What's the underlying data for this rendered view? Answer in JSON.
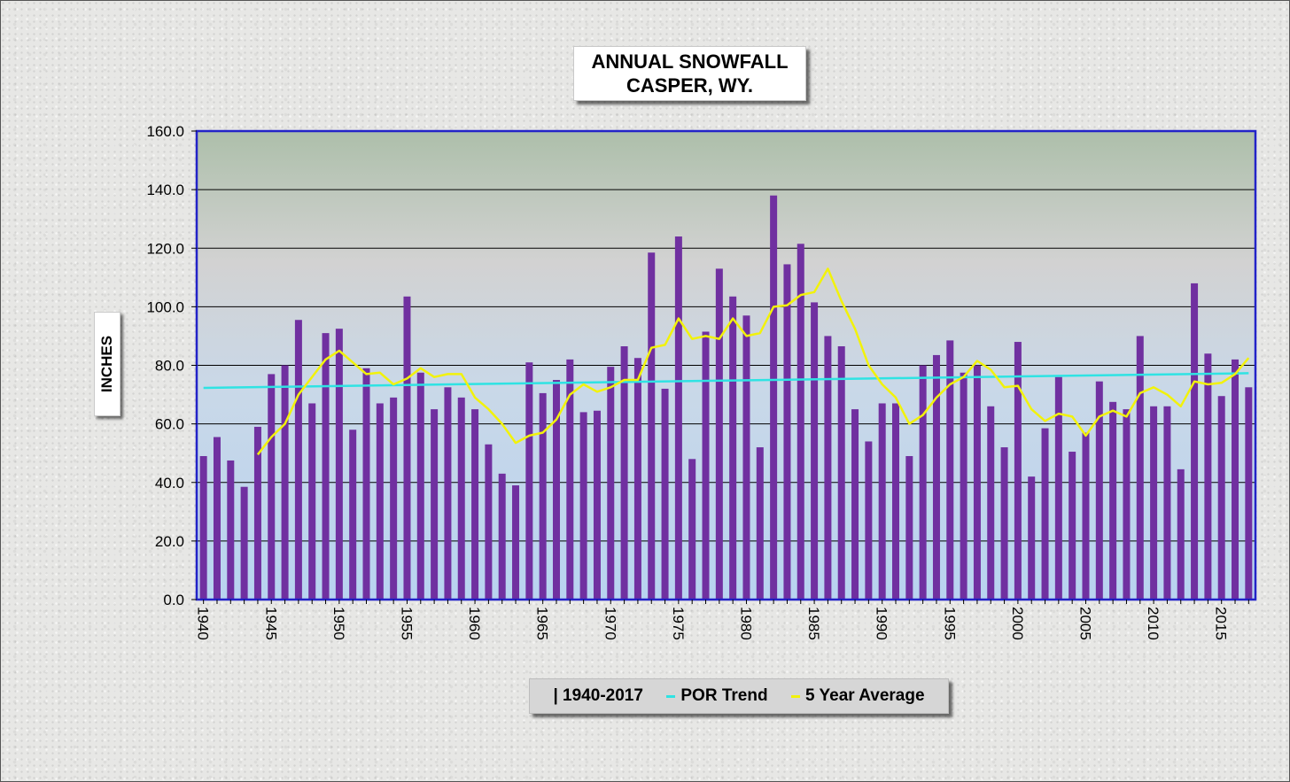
{
  "chart_data": {
    "type": "bar",
    "title_lines": [
      "ANNUAL SNOWFALL",
      "CASPER, WY."
    ],
    "ylabel": "INCHES",
    "ylim": [
      0,
      160
    ],
    "yticks": [
      "0.0",
      "20.0",
      "40.0",
      "60.0",
      "80.0",
      "100.0",
      "120.0",
      "140.0",
      "160.0"
    ],
    "x_tick_labels": [
      "1940",
      "1945",
      "1950",
      "1955",
      "1960",
      "1965",
      "1970",
      "1975",
      "1980",
      "1985",
      "1990",
      "1995",
      "2000",
      "2005",
      "2010",
      "2015"
    ],
    "grid": true,
    "legend_position": "bottom",
    "years": [
      1940,
      1941,
      1942,
      1943,
      1944,
      1945,
      1946,
      1947,
      1948,
      1949,
      1950,
      1951,
      1952,
      1953,
      1954,
      1955,
      1956,
      1957,
      1958,
      1959,
      1960,
      1961,
      1962,
      1963,
      1964,
      1965,
      1966,
      1967,
      1968,
      1969,
      1970,
      1971,
      1972,
      1973,
      1974,
      1975,
      1976,
      1977,
      1978,
      1979,
      1980,
      1981,
      1982,
      1983,
      1984,
      1985,
      1986,
      1987,
      1988,
      1989,
      1990,
      1991,
      1992,
      1993,
      1994,
      1995,
      1996,
      1997,
      1998,
      1999,
      2000,
      2001,
      2002,
      2003,
      2004,
      2005,
      2006,
      2007,
      2008,
      2009,
      2010,
      2011,
      2012,
      2013,
      2014,
      2015,
      2016,
      2017
    ],
    "series": [
      {
        "name": "| 1940-2017",
        "kind": "bar",
        "color": "#7030a0",
        "values": [
          49,
          55.5,
          47.5,
          38.5,
          59,
          77,
          80,
          95.5,
          67,
          91,
          92.5,
          58,
          79,
          67,
          69,
          103.5,
          77.5,
          65,
          72.5,
          69,
          65,
          53,
          43,
          39,
          81,
          70.5,
          75,
          82,
          64,
          64.5,
          79.5,
          86.5,
          82.5,
          118.5,
          72,
          124,
          48,
          91.5,
          113,
          103.5,
          97,
          52,
          138,
          114.5,
          121.5,
          101.5,
          90,
          86.5,
          65,
          54,
          67,
          67,
          49,
          80,
          83.5,
          88.5,
          77.5,
          80,
          66,
          52,
          88,
          42,
          58.5,
          76,
          50.5,
          57,
          74.5,
          67.5,
          65,
          90,
          66,
          66,
          44.5,
          108,
          84,
          69.5,
          82,
          72.5
        ]
      },
      {
        "name": "POR Trend",
        "kind": "line",
        "color": "#2fe3e3",
        "points": [
          [
            1940,
            72.3
          ],
          [
            2017,
            77.3
          ]
        ]
      },
      {
        "name": "5 Year Average",
        "kind": "line",
        "color": "#f2f20a",
        "years": [
          1944,
          1945,
          1946,
          1947,
          1948,
          1949,
          1950,
          1951,
          1952,
          1953,
          1954,
          1955,
          1956,
          1957,
          1958,
          1959,
          1960,
          1961,
          1962,
          1963,
          1964,
          1965,
          1966,
          1967,
          1968,
          1969,
          1970,
          1971,
          1972,
          1973,
          1974,
          1975,
          1976,
          1977,
          1978,
          1979,
          1980,
          1981,
          1982,
          1983,
          1984,
          1985,
          1986,
          1987,
          1988,
          1989,
          1990,
          1991,
          1992,
          1993,
          1994,
          1995,
          1996,
          1997,
          1998,
          1999,
          2000,
          2001,
          2002,
          2003,
          2004,
          2005,
          2006,
          2007,
          2008,
          2009,
          2010,
          2011,
          2012,
          2013,
          2014,
          2015,
          2016,
          2017
        ],
        "values": [
          49.5,
          55.5,
          60,
          70,
          76,
          82,
          85,
          81,
          77,
          77.5,
          73.5,
          75.5,
          79,
          76,
          77,
          77,
          69,
          65,
          60,
          53.5,
          56,
          57,
          61.5,
          70,
          73.5,
          71,
          72.5,
          75,
          75,
          86,
          87,
          96,
          89,
          90,
          89,
          96,
          90,
          91,
          100,
          100.5,
          104,
          105,
          113,
          102,
          92.5,
          80,
          73.5,
          69,
          60,
          63,
          69,
          73.5,
          76,
          81.5,
          78.5,
          72.5,
          73,
          65,
          61,
          63.5,
          62.5,
          56,
          62.5,
          64.5,
          62.5,
          70.5,
          72.5,
          70,
          66,
          74.5,
          73.5,
          74,
          77,
          82.5
        ]
      }
    ]
  }
}
